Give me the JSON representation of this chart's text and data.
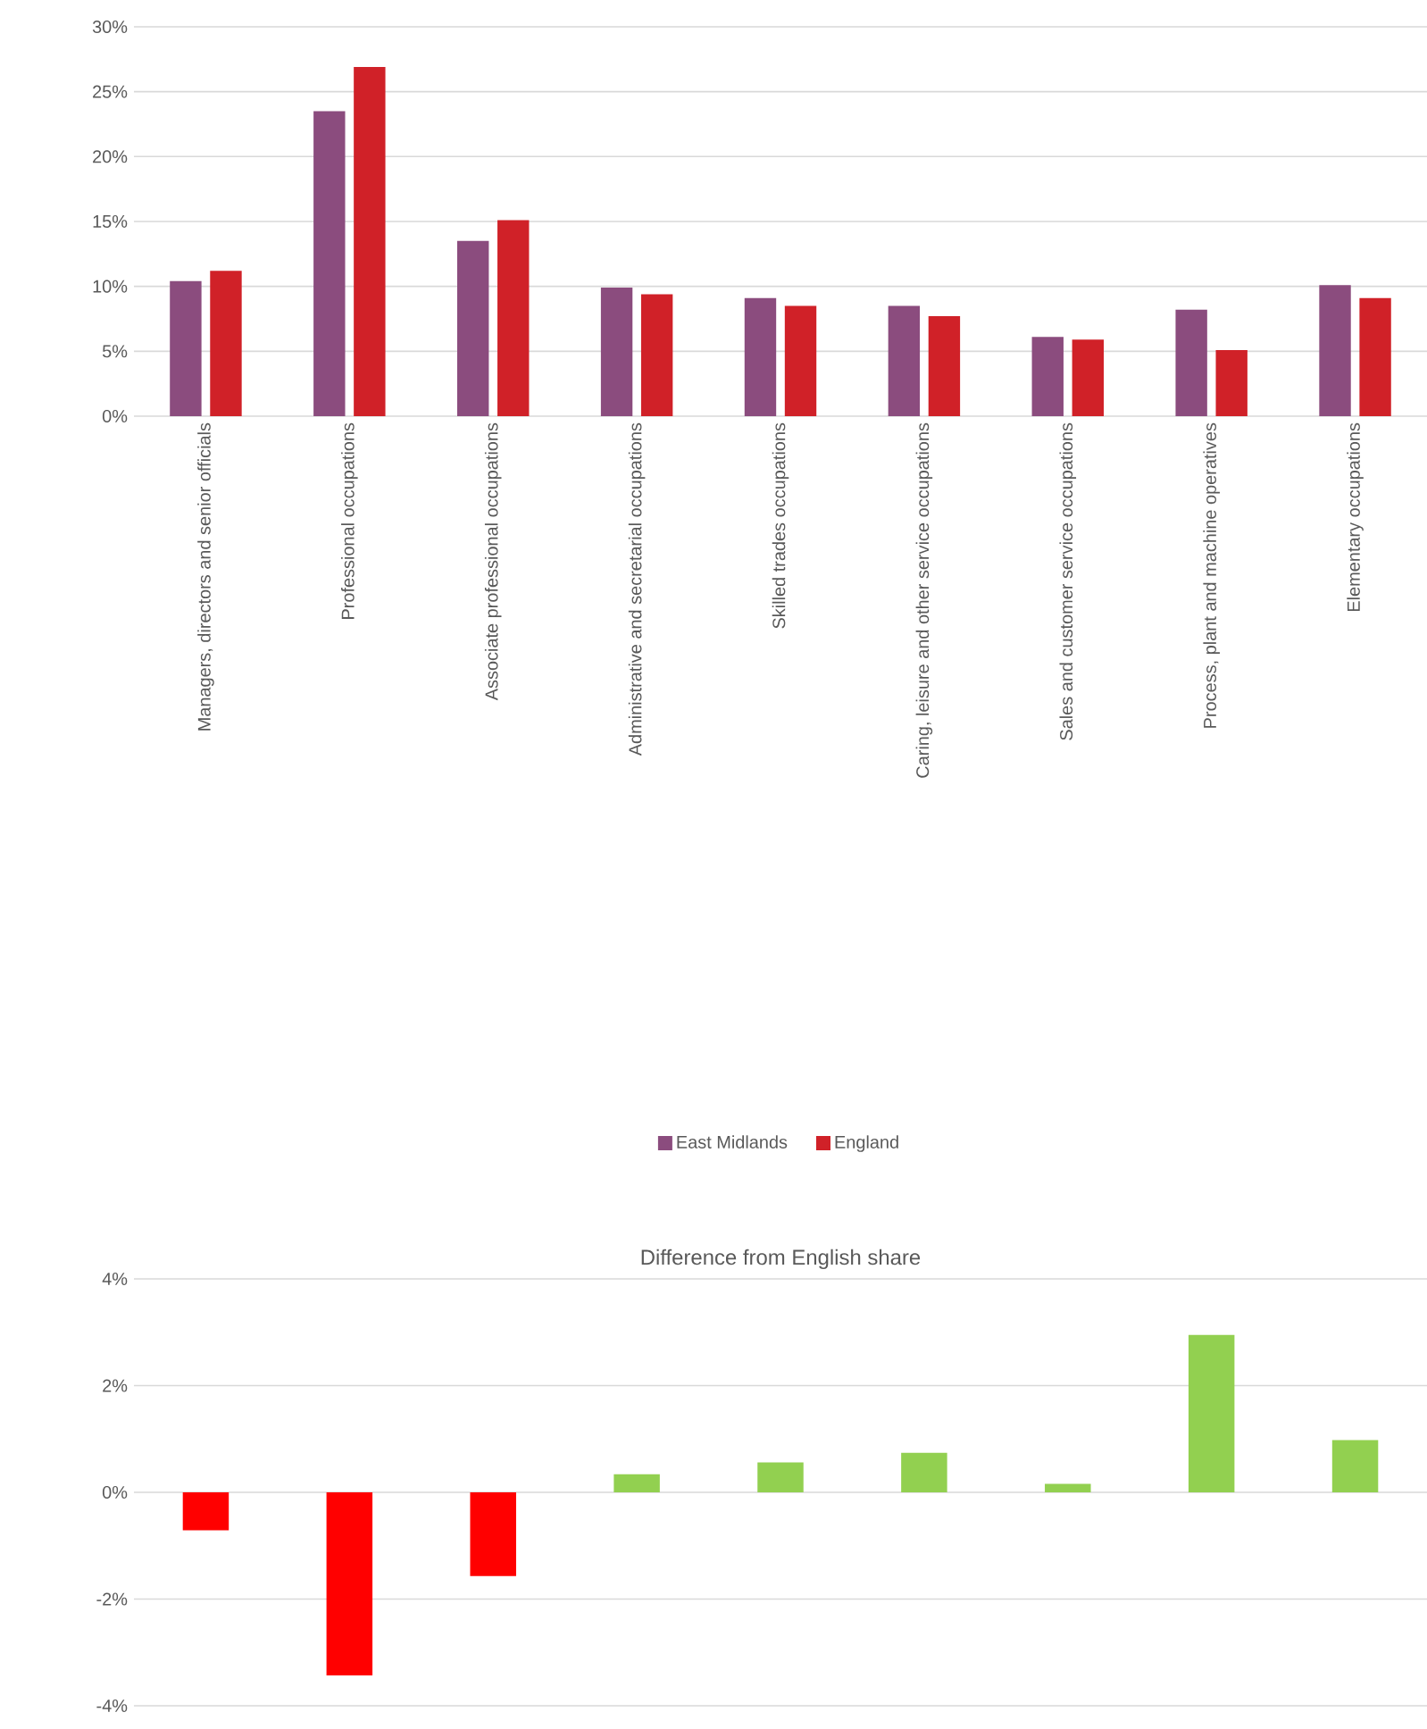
{
  "chart_data": [
    {
      "type": "bar",
      "categories": [
        "Managers, directors and senior officials",
        "Professional occupations",
        "Associate professional occupations",
        "Administrative and secretarial occupations",
        "Skilled trades occupations",
        "Caring, leisure and other service occupations",
        "Sales and customer service occupations",
        "Process, plant and machine operatives",
        "Elementary occupations"
      ],
      "series": [
        {
          "name": "East Midlands",
          "color": "#8b4c7e",
          "values": [
            10.4,
            23.5,
            13.5,
            9.9,
            9.1,
            8.5,
            6.1,
            8.2,
            10.1
          ]
        },
        {
          "name": "England",
          "color": "#d02128",
          "values": [
            11.2,
            26.9,
            15.1,
            9.4,
            8.5,
            7.7,
            5.9,
            5.1,
            9.1
          ]
        }
      ],
      "ylim": [
        0,
        30
      ],
      "yticks": [
        {
          "value": 0,
          "label": "0%"
        },
        {
          "value": 5,
          "label": "5%"
        },
        {
          "value": 10,
          "label": "10%"
        },
        {
          "value": 15,
          "label": "15%"
        },
        {
          "value": 20,
          "label": "20%"
        },
        {
          "value": 25,
          "label": "25%"
        },
        {
          "value": 30,
          "label": "30%"
        }
      ],
      "grid": "y",
      "legend": "bottom"
    },
    {
      "type": "bar",
      "title": "Difference from English share",
      "categories": [
        null,
        null,
        null,
        null,
        null,
        null,
        null,
        null,
        null
      ],
      "values": [
        -0.71,
        -3.43,
        -1.57,
        0.34,
        0.56,
        0.74,
        0.16,
        2.95,
        0.98
      ],
      "colors": [
        "#ff0000",
        "#ff0000",
        "#ff0000",
        "#92d050",
        "#92d050",
        "#92d050",
        "#92d050",
        "#92d050",
        "#92d050"
      ],
      "ylim": [
        -4,
        4
      ],
      "yticks": [
        {
          "value": -4,
          "label": "-4%"
        },
        {
          "value": -2,
          "label": "-2%"
        },
        {
          "value": 0,
          "label": "0%"
        },
        {
          "value": 2,
          "label": "2%"
        },
        {
          "value": 4,
          "label": "4%"
        }
      ],
      "grid": "y"
    }
  ]
}
